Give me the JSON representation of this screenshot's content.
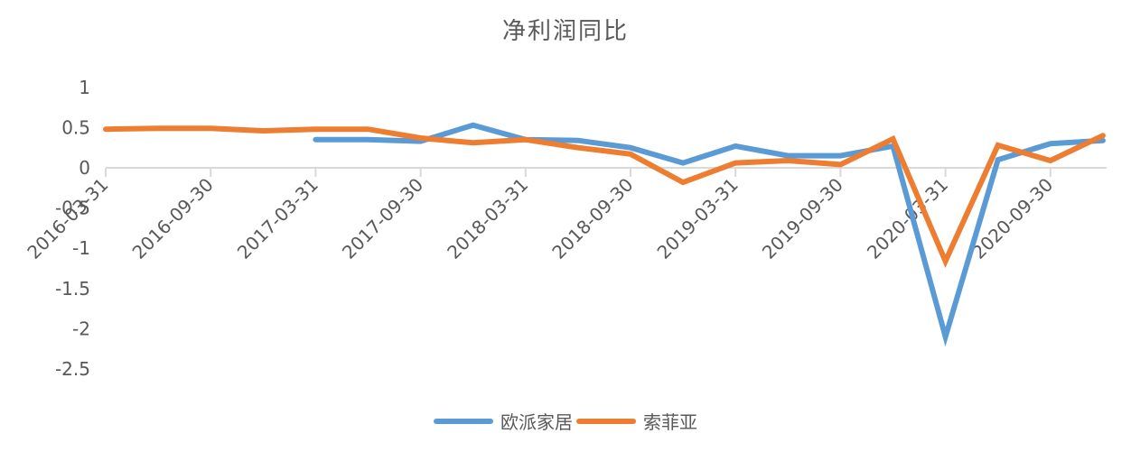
{
  "chart_data": {
    "type": "line",
    "title": "净利润同比",
    "xlabel": "",
    "ylabel": "",
    "ylim": [
      -2.5,
      1
    ],
    "yticks": [
      1,
      0.5,
      0,
      -0.5,
      -1,
      -1.5,
      -2,
      -2.5
    ],
    "ytick_labels": [
      "1",
      "0.5",
      "0",
      "-0.5",
      "-1",
      "-1.5",
      "-2",
      "-2.5"
    ],
    "grid": false,
    "legend_position": "bottom",
    "x": [
      "2016-03-31",
      "2016-06-30",
      "2016-09-30",
      "2016-12-31",
      "2017-03-31",
      "2017-06-30",
      "2017-09-30",
      "2017-12-31",
      "2018-03-31",
      "2018-06-30",
      "2018-09-30",
      "2018-12-31",
      "2019-03-31",
      "2019-06-30",
      "2019-09-30",
      "2019-12-31",
      "2020-03-31",
      "2020-06-30",
      "2020-09-30",
      "2020-12-31"
    ],
    "xtick_labels": [
      "2016-03-31",
      "2016-09-30",
      "2017-03-31",
      "2017-09-30",
      "2018-03-31",
      "2018-09-30",
      "2019-03-31",
      "2019-09-30",
      "2020-03-31",
      "2020-09-30"
    ],
    "series": [
      {
        "name": "欧派家居",
        "color": "#5B9BD5",
        "values": [
          null,
          null,
          null,
          null,
          0.35,
          0.35,
          0.33,
          0.53,
          0.35,
          0.34,
          0.25,
          0.06,
          0.27,
          0.15,
          0.15,
          0.27,
          -2.1,
          0.1,
          0.3,
          0.34
        ]
      },
      {
        "name": "索菲亚",
        "color": "#ED7D31",
        "values": [
          0.48,
          0.49,
          0.49,
          0.46,
          0.48,
          0.48,
          0.37,
          0.31,
          0.35,
          0.25,
          0.17,
          -0.18,
          0.06,
          0.09,
          0.04,
          0.36,
          -1.16,
          0.28,
          0.09,
          0.4
        ]
      }
    ]
  },
  "colors": {
    "axis": "#D9D9D9",
    "text": "#595959"
  }
}
